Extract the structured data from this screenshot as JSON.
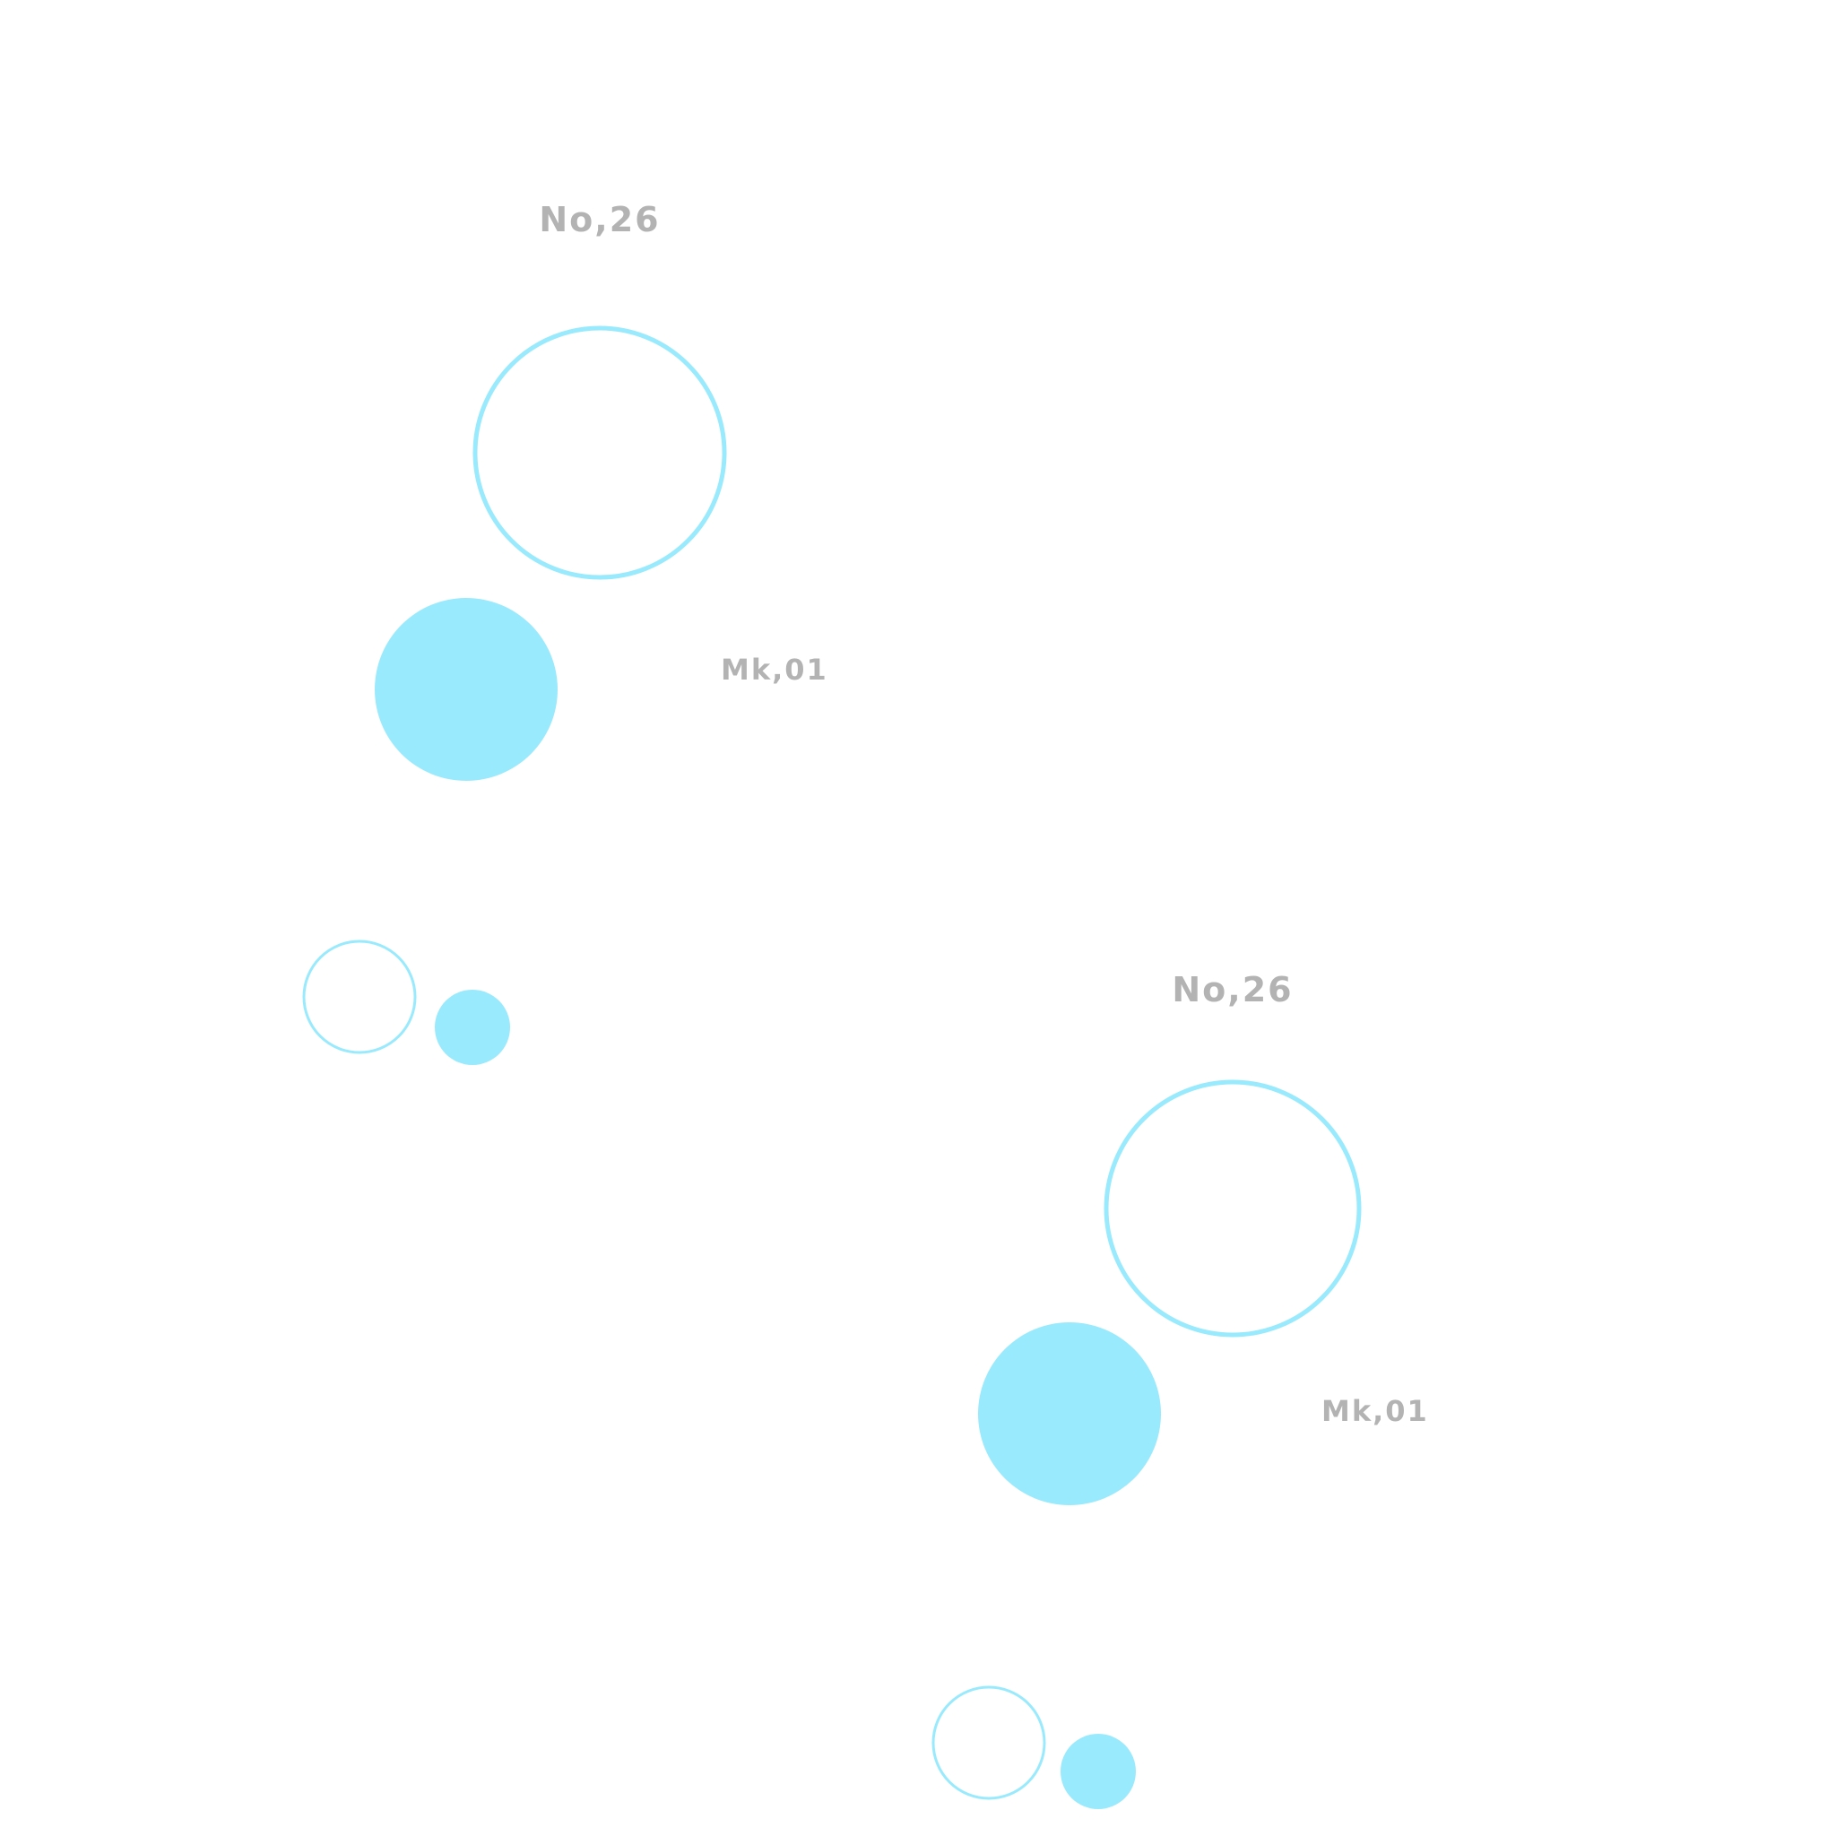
{
  "palette": {
    "background": "#ffffff",
    "circle": "#9aeafd",
    "label": "#b3b3b3"
  },
  "groups": [
    {
      "label_top": "No,26",
      "label_side": "Mk,01"
    },
    {
      "label_top": "No,26",
      "label_side": "Mk,01"
    }
  ]
}
